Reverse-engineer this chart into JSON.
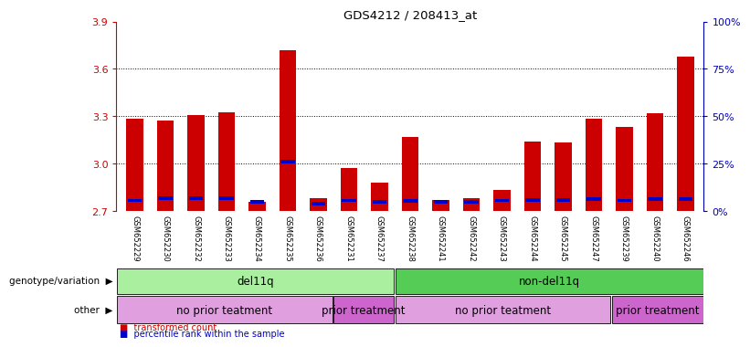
{
  "title": "GDS4212 / 208413_at",
  "samples": [
    "GSM652229",
    "GSM652230",
    "GSM652232",
    "GSM652233",
    "GSM652234",
    "GSM652235",
    "GSM652236",
    "GSM652231",
    "GSM652237",
    "GSM652238",
    "GSM652241",
    "GSM652242",
    "GSM652243",
    "GSM652244",
    "GSM652245",
    "GSM652247",
    "GSM652239",
    "GSM652240",
    "GSM652246"
  ],
  "red_values": [
    3.285,
    3.275,
    3.305,
    3.325,
    2.755,
    3.72,
    2.78,
    2.97,
    2.88,
    3.17,
    2.77,
    2.78,
    2.835,
    3.14,
    3.135,
    3.285,
    3.23,
    3.32,
    3.68
  ],
  "blue_values": [
    2.755,
    2.77,
    2.77,
    2.77,
    2.745,
    3.0,
    2.735,
    2.756,
    2.748,
    2.752,
    2.747,
    2.748,
    2.755,
    2.757,
    2.757,
    2.762,
    2.756,
    2.762,
    2.762
  ],
  "y_min": 2.7,
  "y_max": 3.9,
  "y_ticks_left": [
    2.7,
    3.0,
    3.3,
    3.6,
    3.9
  ],
  "y_right_vals": [
    0,
    25,
    50,
    75,
    100
  ],
  "y_right_labels": [
    "0%",
    "25%",
    "50%",
    "75%",
    "100%"
  ],
  "bar_color": "#CC0000",
  "blue_color": "#0000CC",
  "left_axis_color": "#CC0000",
  "right_axis_color": "#0000BB",
  "plot_bg": "#FFFFFF",
  "xtick_bg": "#C8C8C8",
  "genotype_groups": [
    {
      "label": "del11q",
      "start": 0,
      "end": 9,
      "color": "#AAEEA0"
    },
    {
      "label": "non-del11q",
      "start": 9,
      "end": 19,
      "color": "#55CC55"
    }
  ],
  "other_groups": [
    {
      "label": "no prior teatment",
      "start": 0,
      "end": 7,
      "color": "#E0A0E0"
    },
    {
      "label": "prior treatment",
      "start": 7,
      "end": 9,
      "color": "#CC66CC"
    },
    {
      "label": "no prior teatment",
      "start": 9,
      "end": 16,
      "color": "#E0A0E0"
    },
    {
      "label": "prior treatment",
      "start": 16,
      "end": 19,
      "color": "#CC66CC"
    }
  ],
  "legend_red": "transformed count",
  "legend_blue": "percentile rank within the sample"
}
